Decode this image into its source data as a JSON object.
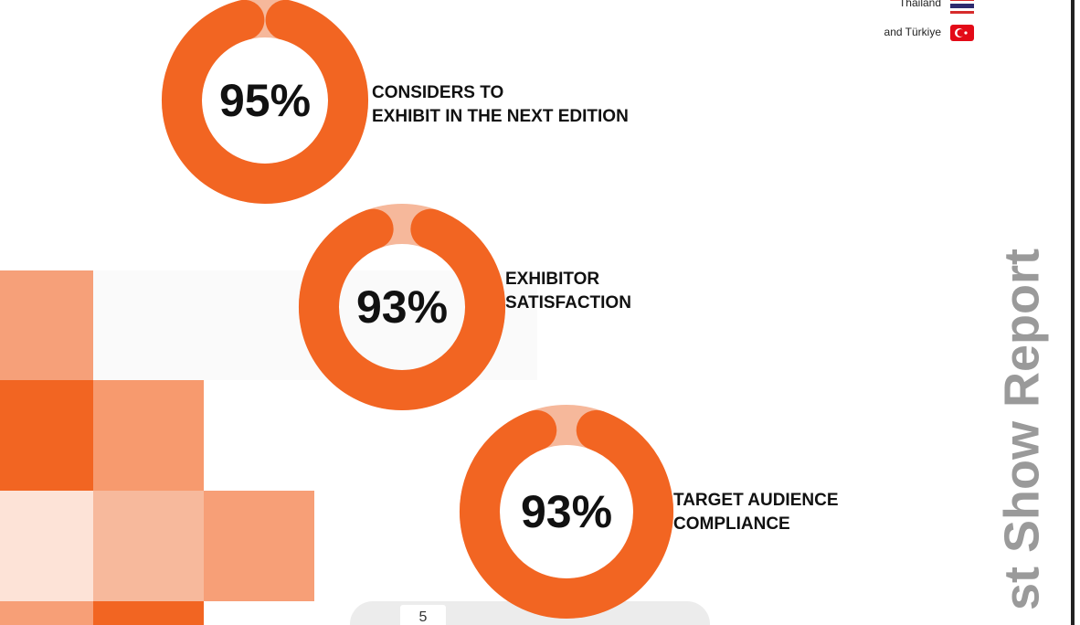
{
  "countries": [
    "Thailand",
    "and Türkiye"
  ],
  "stats": [
    {
      "value": 95,
      "label": "95%",
      "caption": [
        "CONSIDERS TO",
        "EXHIBIT IN THE NEXT EDITION"
      ]
    },
    {
      "value": 93,
      "label": "93%",
      "caption": [
        "EXHIBITOR",
        "SATISFACTION"
      ]
    },
    {
      "value": 93,
      "label": "93%",
      "caption": [
        "TARGET AUDIENCE",
        "COMPLIANCE"
      ]
    }
  ],
  "side_title": "st Show Report",
  "toolbar": {
    "page": "5"
  }
}
